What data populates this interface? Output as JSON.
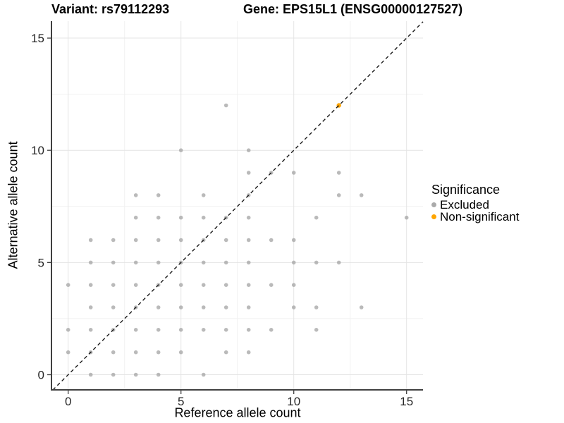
{
  "header": {
    "variant_title": "Variant: rs79112293",
    "gene_title": "Gene: EPS15L1 (ENSG00000127527)"
  },
  "legend": {
    "title": "Significance",
    "items": [
      {
        "label": "Excluded",
        "color": "#aaaaaa"
      },
      {
        "label": "Non-significant",
        "color": "#FFA500"
      }
    ]
  },
  "chart_data": {
    "type": "scatter",
    "title": "Variant: rs79112293  Gene: EPS15L1 (ENSG00000127527)",
    "xlabel": "Reference allele count",
    "ylabel": "Alternative allele count",
    "xlim": [
      -0.74,
      15.73
    ],
    "ylim": [
      -0.68,
      15.77
    ],
    "x_ticks": [
      0,
      5,
      10,
      15
    ],
    "y_ticks": [
      0,
      5,
      10,
      15
    ],
    "x_minor_gridlines": [
      2.5,
      7.5,
      12.5
    ],
    "y_minor_gridlines": [
      2.5,
      7.5,
      12.5
    ],
    "grid": "on",
    "legend_position": "right",
    "reference_line": {
      "equation": "y = x",
      "style": "dashed",
      "color": "#1a1a1a"
    },
    "series": [
      {
        "name": "Excluded",
        "color": "#a9a9a9",
        "opacity": 0.8,
        "radius": 2.8,
        "points": [
          [
            1,
            0
          ],
          [
            2,
            0
          ],
          [
            3,
            0
          ],
          [
            4,
            0
          ],
          [
            6,
            0
          ],
          [
            0,
            1
          ],
          [
            1,
            1
          ],
          [
            2,
            1
          ],
          [
            3,
            1
          ],
          [
            4,
            1
          ],
          [
            5,
            1
          ],
          [
            7,
            1
          ],
          [
            8,
            1
          ],
          [
            0,
            2
          ],
          [
            1,
            2
          ],
          [
            2,
            2
          ],
          [
            3,
            2
          ],
          [
            4,
            2
          ],
          [
            5,
            2
          ],
          [
            6,
            2
          ],
          [
            7,
            2
          ],
          [
            8,
            2
          ],
          [
            9,
            2
          ],
          [
            11,
            2
          ],
          [
            1,
            3
          ],
          [
            2,
            3
          ],
          [
            3,
            3
          ],
          [
            4,
            3
          ],
          [
            5,
            3
          ],
          [
            6,
            3
          ],
          [
            7,
            3
          ],
          [
            8,
            3
          ],
          [
            10,
            3
          ],
          [
            11,
            3
          ],
          [
            13,
            3
          ],
          [
            0,
            4
          ],
          [
            1,
            4
          ],
          [
            2,
            4
          ],
          [
            3,
            4
          ],
          [
            4,
            4
          ],
          [
            5,
            4
          ],
          [
            6,
            4
          ],
          [
            7,
            4
          ],
          [
            8,
            4
          ],
          [
            9,
            4
          ],
          [
            10,
            4
          ],
          [
            1,
            5
          ],
          [
            2,
            5
          ],
          [
            3,
            5
          ],
          [
            4,
            5
          ],
          [
            5,
            5
          ],
          [
            6,
            5
          ],
          [
            7,
            5
          ],
          [
            8,
            5
          ],
          [
            10,
            5
          ],
          [
            11,
            5
          ],
          [
            12,
            5
          ],
          [
            1,
            6
          ],
          [
            2,
            6
          ],
          [
            3,
            6
          ],
          [
            4,
            6
          ],
          [
            5,
            6
          ],
          [
            6,
            6
          ],
          [
            7,
            6
          ],
          [
            8,
            6
          ],
          [
            9,
            6
          ],
          [
            10,
            6
          ],
          [
            3,
            7
          ],
          [
            4,
            7
          ],
          [
            5,
            7
          ],
          [
            6,
            7
          ],
          [
            7,
            7
          ],
          [
            8,
            7
          ],
          [
            11,
            7
          ],
          [
            15,
            7
          ],
          [
            3,
            8
          ],
          [
            4,
            8
          ],
          [
            6,
            8
          ],
          [
            8,
            8
          ],
          [
            12,
            8
          ],
          [
            13,
            8
          ],
          [
            8,
            9
          ],
          [
            9,
            9
          ],
          [
            10,
            9
          ],
          [
            12,
            9
          ],
          [
            5,
            10
          ],
          [
            8,
            10
          ],
          [
            7,
            12
          ]
        ]
      },
      {
        "name": "Non-significant",
        "color": "#FFA500",
        "opacity": 1,
        "radius": 3.2,
        "points": [
          [
            12,
            12
          ]
        ]
      }
    ],
    "colors": {
      "grid_major": "#e4e4e4",
      "grid_minor": "#f1f1f1",
      "axis_line": "#404040",
      "tick_label": "#262626"
    }
  }
}
